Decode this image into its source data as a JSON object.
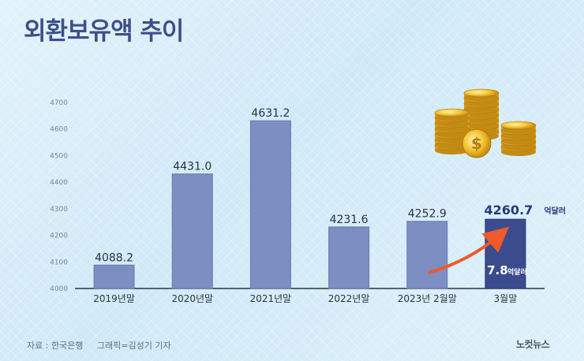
{
  "title": "외환보유액 추이",
  "source": "자료 : 한국은행",
  "graphic_credit": "그래픽=김성기 기자",
  "brand": "노컷뉴스",
  "colors": {
    "bar": "#7d8ec2",
    "bar_highlight": "#3a4c8e",
    "arrow": "#ee5a2b",
    "title": "#3d4f8a"
  },
  "chart_data": {
    "type": "bar",
    "categories": [
      "2019년말",
      "2020년말",
      "2021년말",
      "2022년말",
      "2023년 2월말",
      "3월말"
    ],
    "values": [
      4088.2,
      4431.0,
      4631.2,
      4231.6,
      4252.9,
      4260.7
    ],
    "value_labels": [
      "4088.2",
      "4431.0",
      "4631.2",
      "4231.6",
      "4252.9",
      "4260.7"
    ],
    "highlight_index": 5,
    "highlight_unit": "억달러",
    "ylim": [
      4000,
      4700
    ],
    "yticks": [
      "4000",
      "4100",
      "4200",
      "4300",
      "4400",
      "4500",
      "4600",
      "4700"
    ],
    "grid": false,
    "annotation": {
      "value": "7.8",
      "unit": "억달러"
    }
  }
}
